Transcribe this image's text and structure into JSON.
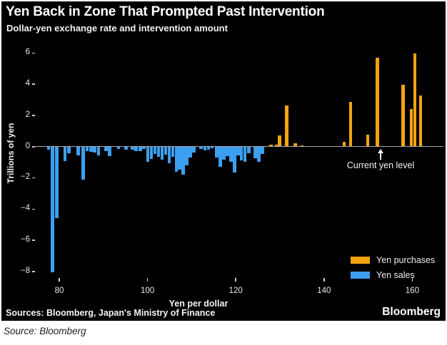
{
  "page": {
    "title": "Yen Back in Zone That Prompted Past Intervention",
    "subtitle": "Dollar-yen exchange rate and intervention amount",
    "footer_sources": "Sources: Bloomberg, Japan's Ministry of Finance",
    "brand": "Bloomberg",
    "caption": "Source: Bloomberg"
  },
  "annotation": {
    "label": "Current yen level",
    "x_value": 152.8
  },
  "colors": {
    "purchases": "#f5a40f",
    "sales": "#3d9ff0",
    "axis_line": "#a9a9a9",
    "background": "#000000"
  },
  "legend": [
    {
      "label": "Yen purchases",
      "color": "#f5a40f"
    },
    {
      "label": "Yen sales",
      "color": "#3d9ff0"
    }
  ],
  "chart_data": {
    "type": "bar",
    "title": "Yen Back in Zone That Prompted Past Intervention",
    "subtitle": "Dollar-yen exchange rate and intervention amount",
    "xlabel": "Yen per dollar",
    "ylabel": "Trillions of yen",
    "xlim": [
      74,
      167
    ],
    "ylim": [
      -8.5,
      6.5
    ],
    "x_ticks": [
      80,
      100,
      120,
      140,
      160
    ],
    "y_ticks": [
      6,
      4,
      2,
      0,
      -2,
      -4,
      -6,
      -8
    ],
    "grid": false,
    "legend_position": "lower right",
    "series": [
      {
        "name": "Yen sales",
        "color": "#3d9ff0",
        "points": [
          [
            77.6,
            -0.2
          ],
          [
            78.5,
            -8.07
          ],
          [
            79.4,
            -4.6
          ],
          [
            81.3,
            -0.95
          ],
          [
            82.2,
            -0.45
          ],
          [
            84.3,
            -0.55
          ],
          [
            85.4,
            -2.12
          ],
          [
            86.3,
            -0.3
          ],
          [
            87.2,
            -0.35
          ],
          [
            88.0,
            -0.4
          ],
          [
            88.9,
            -0.55
          ],
          [
            90.6,
            -0.3
          ],
          [
            91.4,
            -0.62
          ],
          [
            93.4,
            -0.15
          ],
          [
            95.1,
            -0.2
          ],
          [
            96.6,
            -0.22
          ],
          [
            97.4,
            -0.28
          ],
          [
            98.4,
            -0.3
          ],
          [
            99.2,
            -0.15
          ],
          [
            100.1,
            -1.0
          ],
          [
            100.9,
            -0.78
          ],
          [
            101.7,
            -0.5
          ],
          [
            102.5,
            -0.65
          ],
          [
            103.3,
            -0.85
          ],
          [
            104.1,
            -0.52
          ],
          [
            104.9,
            -1.05
          ],
          [
            105.7,
            -0.67
          ],
          [
            106.5,
            -1.64
          ],
          [
            107.3,
            -1.5
          ],
          [
            108.1,
            -1.8
          ],
          [
            108.9,
            -1.2
          ],
          [
            109.7,
            -0.7
          ],
          [
            110.5,
            -0.4
          ],
          [
            112.1,
            -0.15
          ],
          [
            113.0,
            -0.25
          ],
          [
            113.8,
            -0.22
          ],
          [
            114.6,
            -0.12
          ],
          [
            115.7,
            -0.7
          ],
          [
            116.5,
            -1.3
          ],
          [
            117.3,
            -0.85
          ],
          [
            118.1,
            -0.6
          ],
          [
            118.9,
            -1.0
          ],
          [
            119.7,
            -1.67
          ],
          [
            120.5,
            -0.55
          ],
          [
            121.3,
            -0.9
          ],
          [
            122.1,
            -1.0
          ],
          [
            123.0,
            -0.45
          ],
          [
            124.4,
            -0.75
          ],
          [
            125.2,
            -1.0
          ],
          [
            126.0,
            -0.5
          ]
        ]
      },
      {
        "name": "Yen purchases",
        "color": "#f5a40f",
        "points": [
          [
            128.0,
            0.1
          ],
          [
            129.3,
            0.12
          ],
          [
            129.9,
            0.7
          ],
          [
            131.5,
            2.62
          ],
          [
            133.5,
            0.23
          ],
          [
            135.0,
            0.09
          ],
          [
            139.5,
            0.04
          ],
          [
            141.0,
            0.04
          ],
          [
            142.5,
            0.04
          ],
          [
            144.6,
            0.3
          ],
          [
            146.0,
            2.85
          ],
          [
            149.9,
            0.75
          ],
          [
            152.1,
            5.7
          ],
          [
            157.9,
            3.95
          ],
          [
            159.8,
            2.4
          ],
          [
            160.6,
            5.95
          ],
          [
            161.9,
            3.25
          ]
        ]
      }
    ]
  }
}
